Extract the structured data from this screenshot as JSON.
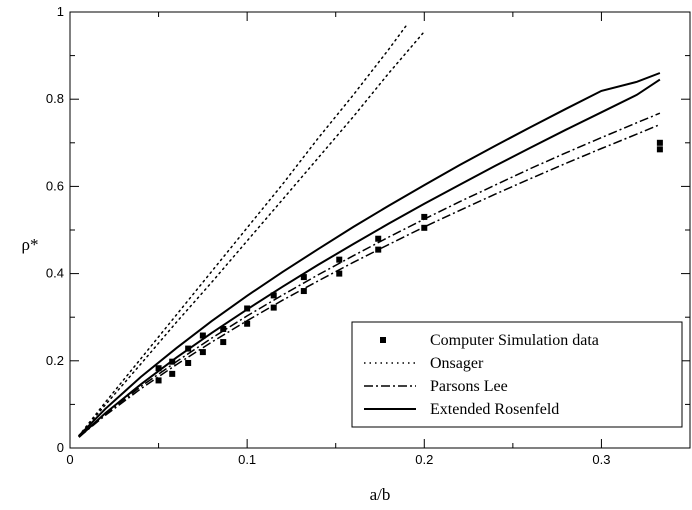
{
  "chart_data": {
    "type": "line",
    "title": "",
    "xlabel": "a/b",
    "ylabel": "ρ*",
    "xlim": [
      0,
      0.35
    ],
    "ylim": [
      0,
      1
    ],
    "xticks": [
      0,
      0.1,
      0.2,
      0.3
    ],
    "xtick_labels": [
      "0",
      "0.1",
      "0.2",
      "0.3"
    ],
    "yticks": [
      0,
      0.2,
      0.4,
      0.6,
      0.8,
      1
    ],
    "ytick_labels": [
      "0",
      "0.2",
      "0.4",
      "0.6",
      "0.8",
      "1"
    ],
    "grid": false,
    "legend_position": "bottom-right",
    "series": [
      {
        "name": "Computer Simulation data",
        "style": "markers",
        "marker": "square",
        "color": "#000000",
        "x": [
          0.05,
          0.05,
          0.0577,
          0.0577,
          0.0667,
          0.0667,
          0.075,
          0.075,
          0.0865,
          0.0865,
          0.1,
          0.1,
          0.115,
          0.115,
          0.132,
          0.132,
          0.152,
          0.152,
          0.174,
          0.174,
          0.2,
          0.2,
          0.333,
          0.333
        ],
        "y": [
          0.155,
          0.183,
          0.17,
          0.198,
          0.195,
          0.228,
          0.22,
          0.258,
          0.243,
          0.273,
          0.285,
          0.32,
          0.322,
          0.35,
          0.36,
          0.392,
          0.4,
          0.432,
          0.455,
          0.48,
          0.505,
          0.53,
          0.685,
          0.7
        ]
      },
      {
        "name": "Onsager",
        "style": "dotted",
        "color": "#000000",
        "lines": [
          {
            "x": [
              0.005,
              0.02,
              0.04,
              0.06,
              0.08,
              0.1,
              0.12,
              0.14,
              0.16,
              0.18,
              0.2
            ],
            "y": [
              0.028,
              0.099,
              0.193,
              0.288,
              0.38,
              0.475,
              0.57,
              0.665,
              0.76,
              0.86,
              0.955
            ]
          },
          {
            "x": [
              0.005,
              0.02,
              0.04,
              0.06,
              0.08,
              0.1,
              0.12,
              0.14,
              0.16,
              0.18,
              0.19
            ],
            "y": [
              0.028,
              0.105,
              0.205,
              0.305,
              0.405,
              0.505,
              0.605,
              0.71,
              0.81,
              0.915,
              0.97
            ]
          }
        ]
      },
      {
        "name": "Parsons Lee",
        "style": "dash-dot",
        "color": "#000000",
        "lines": [
          {
            "x": [
              0.005,
              0.02,
              0.04,
              0.06,
              0.08,
              0.1,
              0.12,
              0.14,
              0.16,
              0.18,
              0.2,
              0.22,
              0.24,
              0.26,
              0.28,
              0.3,
              0.32,
              0.333
            ],
            "y": [
              0.025,
              0.075,
              0.136,
              0.191,
              0.243,
              0.292,
              0.339,
              0.383,
              0.426,
              0.467,
              0.507,
              0.545,
              0.582,
              0.618,
              0.653,
              0.687,
              0.72,
              0.742
            ]
          },
          {
            "x": [
              0.005,
              0.02,
              0.04,
              0.06,
              0.08,
              0.1,
              0.12,
              0.14,
              0.16,
              0.18,
              0.2,
              0.22,
              0.24,
              0.26,
              0.28,
              0.3,
              0.32,
              0.333
            ],
            "y": [
              0.026,
              0.078,
              0.141,
              0.198,
              0.252,
              0.303,
              0.351,
              0.397,
              0.441,
              0.484,
              0.525,
              0.565,
              0.603,
              0.641,
              0.677,
              0.712,
              0.746,
              0.768
            ]
          }
        ]
      },
      {
        "name": "Extended Rosenfeld",
        "style": "solid",
        "color": "#000000",
        "lines": [
          {
            "x": [
              0.005,
              0.02,
              0.04,
              0.06,
              0.08,
              0.1,
              0.12,
              0.14,
              0.16,
              0.18,
              0.2,
              0.22,
              0.24,
              0.26,
              0.28,
              0.3,
              0.32,
              0.333
            ],
            "y": [
              0.025,
              0.08,
              0.146,
              0.207,
              0.264,
              0.318,
              0.37,
              0.42,
              0.468,
              0.515,
              0.56,
              0.604,
              0.647,
              0.689,
              0.73,
              0.77,
              0.81,
              0.845
            ]
          },
          {
            "x": [
              0.005,
              0.02,
              0.04,
              0.06,
              0.08,
              0.1,
              0.12,
              0.14,
              0.16,
              0.18,
              0.2,
              0.22,
              0.24,
              0.26,
              0.28,
              0.3,
              0.32,
              0.333
            ],
            "y": [
              0.028,
              0.09,
              0.163,
              0.229,
              0.291,
              0.349,
              0.404,
              0.456,
              0.507,
              0.556,
              0.603,
              0.649,
              0.693,
              0.736,
              0.778,
              0.819,
              0.84,
              0.86
            ]
          }
        ]
      }
    ]
  }
}
